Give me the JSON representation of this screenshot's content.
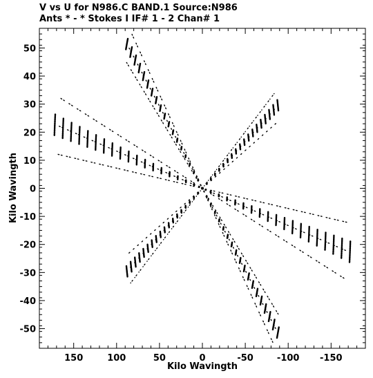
{
  "header": {
    "line1": "V vs U for N986.C BAND.1   Source:N986",
    "line2": "Ants * - *    Stokes I   IF# 1 - 2   Chan# 1"
  },
  "chart_data": {
    "type": "scatter",
    "title": "V vs U for N986.C BAND.1   Source:N986",
    "subtitle": "Ants * - *    Stokes I   IF# 1 - 2   Chan# 1",
    "xlabel": "Kilo Wavingth",
    "ylabel": "Kilo Wavingth",
    "xlim": [
      190,
      -190
    ],
    "ylim": [
      -57,
      57
    ],
    "x_reversed": true,
    "xticks": [
      150,
      100,
      50,
      0,
      -50,
      -100,
      -150
    ],
    "xtick_labels": [
      "150",
      "100",
      "50",
      "0",
      "-50",
      "-100",
      "-150"
    ],
    "yticks": [
      50,
      40,
      30,
      20,
      10,
      0,
      -10,
      -20,
      -30,
      -40,
      -50
    ],
    "ytick_labels": [
      "50",
      "40",
      "30",
      "20",
      "10",
      "0",
      "-10",
      "-20",
      "-30",
      "-40",
      "-50"
    ],
    "grid": false,
    "series": [
      {
        "arms": [
          {
            "end": [
              172,
              22.8
            ]
          },
          {
            "end": [
              88,
              51.5
            ]
          },
          {
            "end": [
              -88,
              29.5
            ]
          }
        ],
        "tracks_per_arm": 18,
        "track_segments": 10,
        "hour_angle_span_deg": 2.6,
        "symmetric": true
      }
    ]
  }
}
